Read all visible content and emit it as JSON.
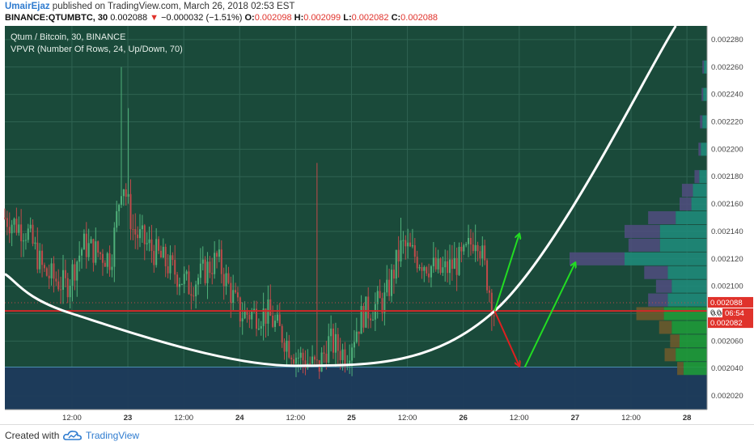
{
  "header": {
    "user": "UmairEjaz",
    "published": " published on TradingView.com, March 26, 2018 02:53 EST",
    "symbol": "BINANCE:QTUMBTC, 30",
    "last": "0.002088",
    "change_arrow": "▼",
    "change": "−0.000032 (−1.51%)",
    "o_label": "O:",
    "o": "0.002098",
    "h_label": "H:",
    "h": "0.002099",
    "l_label": "L:",
    "l": "0.002082",
    "c_label": "C:",
    "c": "0.002088"
  },
  "legend": {
    "line1": "Qtum / Bitcoin, 30, BINANCE",
    "line2": "VPVR (Number Of Rows, 24, Up/Down, 70)"
  },
  "footer": {
    "created": "Created with",
    "brand": "TradingView"
  },
  "colors": {
    "plot_bg": "#1a4a3a",
    "candle_up": "#4fb07a",
    "candle_down": "#c04a4a",
    "arc": "#ffffff",
    "support": "#d02828",
    "arrow_up": "#22dd22",
    "arrow_down": "#dd2020",
    "zone": "#1d3a5c"
  },
  "chart_data": {
    "type": "candlestick",
    "title": "Qtum / Bitcoin, 30, BINANCE",
    "ylim": [
      0.00201,
      0.00229
    ],
    "y_ticks": [
      0.00202,
      0.00204,
      0.00206,
      0.00208,
      0.0021,
      0.00212,
      0.00214,
      0.00216,
      0.00218,
      0.0022,
      0.00222,
      0.00224,
      0.00226,
      0.00228
    ],
    "y_tick_labels": [
      "0.002020",
      "0.002040",
      "0.002060",
      "0.002080",
      "0.002100",
      "0.002120",
      "0.002140",
      "0.002160",
      "0.002180",
      "0.002200",
      "0.002220",
      "0.002240",
      "0.002260",
      "0.002280"
    ],
    "x_ticks": [
      {
        "label": "12:00",
        "t": 0.5
      },
      {
        "label": "23",
        "t": 1.0,
        "bold": true
      },
      {
        "label": "12:00",
        "t": 1.5
      },
      {
        "label": "24",
        "t": 2.0,
        "bold": true
      },
      {
        "label": "12:00",
        "t": 2.5
      },
      {
        "label": "25",
        "t": 3.0,
        "bold": true
      },
      {
        "label": "12:00",
        "t": 3.5
      },
      {
        "label": "26",
        "t": 4.0,
        "bold": true
      },
      {
        "label": "12:00",
        "t": 4.5
      },
      {
        "label": "27",
        "t": 5.0,
        "bold": true
      },
      {
        "label": "12:00",
        "t": 5.5
      },
      {
        "label": "28",
        "t": 6.0,
        "bold": true
      }
    ],
    "x_range": [
      -0.1,
      6.18
    ],
    "anchors": [
      [
        -0.1,
        0.00215
      ],
      [
        0.1,
        0.00214
      ],
      [
        0.25,
        0.00211
      ],
      [
        0.45,
        0.0021
      ],
      [
        0.6,
        0.00213
      ],
      [
        0.85,
        0.00212
      ],
      [
        0.95,
        0.00218
      ],
      [
        1.05,
        0.00214
      ],
      [
        1.3,
        0.00212
      ],
      [
        1.55,
        0.0021
      ],
      [
        1.8,
        0.00212
      ],
      [
        2.0,
        0.00208
      ],
      [
        2.25,
        0.00208
      ],
      [
        2.5,
        0.00205
      ],
      [
        2.7,
        0.00204
      ],
      [
        2.8,
        0.00206
      ],
      [
        2.95,
        0.00205
      ],
      [
        3.1,
        0.00208
      ],
      [
        3.3,
        0.00209
      ],
      [
        3.45,
        0.00213
      ],
      [
        3.6,
        0.00212
      ],
      [
        3.8,
        0.00211
      ],
      [
        4.0,
        0.00212
      ],
      [
        4.12,
        0.00214
      ],
      [
        4.2,
        0.00211
      ],
      [
        4.28,
        0.00208
      ]
    ],
    "spikes": [
      {
        "t": 0.95,
        "high": 0.00226
      },
      {
        "t": 1.0,
        "high": 0.00223
      },
      {
        "t": 2.7,
        "high": 0.00219
      },
      {
        "t": 3.45,
        "high": 0.00215
      },
      {
        "t": 4.1,
        "high": 0.002145
      }
    ],
    "last_price": 0.002088,
    "last_label": "0.002088",
    "support_price": 0.002082,
    "support_label": "0.002082",
    "countdown": "06:54",
    "countdown_price_prefix": "0.0",
    "zone": {
      "top": 0.002041,
      "bottom": 0.00201
    },
    "arc": {
      "bottom_t": 2.5,
      "bottom_price": 0.002042,
      "points": [
        [
          -0.1,
          0.002109
        ],
        [
          0.5,
          0.00208
        ],
        [
          2.5,
          0.002042
        ],
        [
          4.28,
          0.002082
        ],
        [
          5.9,
          0.00229
        ]
      ]
    },
    "arrows": [
      {
        "from": [
          4.28,
          0.002082
        ],
        "to": [
          4.5,
          0.002138
        ],
        "color": "up"
      },
      {
        "from": [
          4.28,
          0.002082
        ],
        "to": [
          4.5,
          0.002042
        ],
        "color": "down"
      },
      {
        "from": [
          4.55,
          0.002041
        ],
        "to": [
          5.0,
          0.002117
        ],
        "color": "up"
      }
    ],
    "vpvr": {
      "rows": [
        {
          "price": 0.00204,
          "up": 30,
          "down": 8
        },
        {
          "price": 0.00205,
          "up": 40,
          "down": 14
        },
        {
          "price": 0.00206,
          "up": 35,
          "down": 12
        },
        {
          "price": 0.00207,
          "up": 45,
          "down": 16
        },
        {
          "price": 0.00208,
          "up": 55,
          "down": 35
        },
        {
          "price": 0.00209,
          "up": 50,
          "down": 25
        },
        {
          "price": 0.0021,
          "up": 45,
          "down": 20
        },
        {
          "price": 0.00211,
          "up": 50,
          "down": 30
        },
        {
          "price": 0.00212,
          "up": 105,
          "down": 70
        },
        {
          "price": 0.00213,
          "up": 60,
          "down": 40
        },
        {
          "price": 0.00214,
          "up": 60,
          "down": 45
        },
        {
          "price": 0.00215,
          "up": 40,
          "down": 35
        },
        {
          "price": 0.00216,
          "up": 20,
          "down": 15
        },
        {
          "price": 0.00217,
          "up": 18,
          "down": 14
        },
        {
          "price": 0.00218,
          "up": 10,
          "down": 6
        },
        {
          "price": 0.0022,
          "up": 8,
          "down": 3
        },
        {
          "price": 0.00222,
          "up": 6,
          "down": 3
        },
        {
          "price": 0.00224,
          "up": 5,
          "down": 2
        },
        {
          "price": 0.00226,
          "up": 4,
          "down": 2
        }
      ]
    }
  }
}
